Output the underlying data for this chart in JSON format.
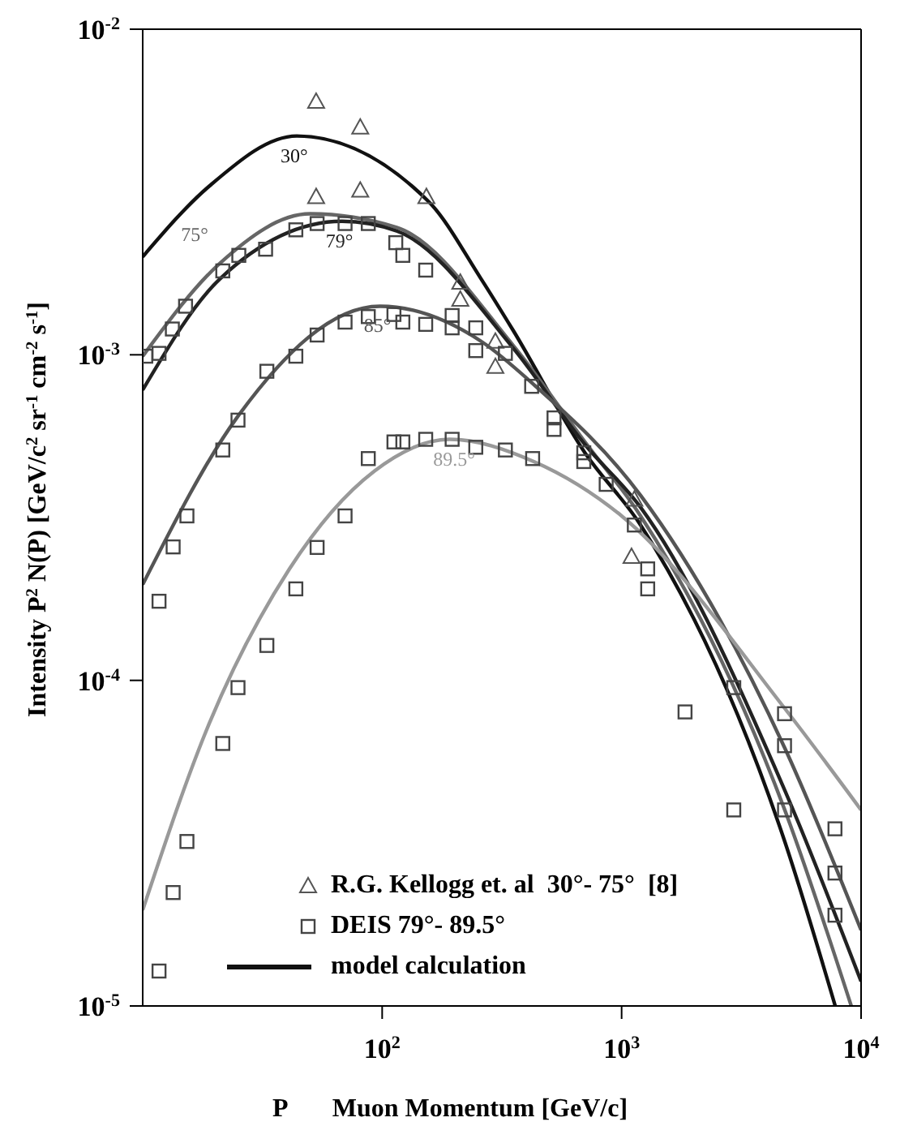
{
  "chart_data": {
    "type": "line",
    "xlabel": "P       Muon Momentum [GeV/c]",
    "ylabel": "Intensity    P$^{2}$ N(P) [GeV/c$^{2}$ sr$^{-1}$ cm$^{-2}$ s$^{-1}$]",
    "log": "xy",
    "xlim": [
      10,
      10000
    ],
    "xticks": [
      {
        "value": 100,
        "label": "10$^{2}$"
      },
      {
        "value": 1000,
        "label": "10$^{3}$"
      },
      {
        "value": 10000,
        "label": "10$^{4}$"
      }
    ],
    "ylim": [
      1e-05,
      0.01
    ],
    "yticks": [
      {
        "value": 1e-05,
        "label": "10$^{-5}$"
      },
      {
        "value": 0.0001,
        "label": "10$^{-4}$"
      },
      {
        "value": 0.001,
        "label": "10$^{-3}$"
      },
      {
        "value": 0.01,
        "label": "10$^{-2}$"
      }
    ],
    "grid": false,
    "legend": "bottom left",
    "annotations": [
      "model calculation"
    ],
    "series": [
      {
        "name": "30°",
        "color": "#111111",
        "marker": "none",
        "x": [
          10,
          19,
          44,
          156,
          259,
          352,
          703,
          1200,
          4800,
          7800
        ],
        "values": [
          0.002,
          0.0033,
          0.0047,
          0.00296,
          0.00171,
          0.00119,
          0.0005,
          0.0003,
          3.2e-05,
          1e-05
        ]
      },
      {
        "name": "75°",
        "color": "#666666",
        "marker": "none",
        "x": [
          10,
          21,
          50,
          115,
          352,
          703,
          1200,
          4800,
          9100
        ],
        "values": [
          0.00099,
          0.00191,
          0.00271,
          0.00246,
          0.00107,
          0.00054,
          0.00032,
          4e-05,
          1e-05
        ]
      },
      {
        "name": "79°",
        "color": "#222222",
        "marker": "none",
        "x": [
          10,
          21,
          68,
          115,
          352,
          703,
          1200,
          4800,
          10000
        ],
        "values": [
          0.00078,
          0.00171,
          0.00257,
          0.0024,
          0.00105,
          0.00053,
          0.00034,
          4.6e-05,
          1.19e-05
        ]
      },
      {
        "name": "85°",
        "color": "#555555",
        "marker": "none",
        "x": [
          10,
          24.7,
          98,
          259,
          430,
          1200,
          4800,
          10000
        ],
        "values": [
          0.000197,
          0.00064,
          0.00141,
          0.0011,
          0.00081,
          0.00037,
          6.2e-05,
          1.71e-05
        ]
      },
      {
        "name": "89.5°",
        "color": "#999999",
        "marker": "none",
        "x": [
          10,
          19,
          41,
          93,
          191,
          430,
          1000,
          4800,
          10000
        ],
        "values": [
          1.97e-05,
          7.4e-05,
          0.00022,
          0.00044,
          0.00055,
          0.00047,
          0.00032,
          8.2e-05,
          4e-05
        ]
      },
      {
        "name": "R.G. Kellogg et. al  30°- 75°  [8]",
        "type": "scatter",
        "color": "#555555",
        "marker": "triangle",
        "x": [
          53,
          81,
          53,
          81,
          153,
          212,
          212,
          297,
          297,
          1130,
          1100
        ],
        "values": [
          0.006,
          0.005,
          0.00306,
          0.0032,
          0.00306,
          0.00167,
          0.00148,
          0.0011,
          0.00092,
          0.00036,
          0.00024
        ]
      },
      {
        "name": "DEIS 79°- 89.5°",
        "type": "scatter",
        "color": "#444444",
        "marker": "square",
        "x": [
          10.3,
          11.7,
          13.3,
          15.1,
          21.6,
          25.2,
          32.6,
          43.6,
          53.5,
          70,
          87.5,
          114,
          122,
          152,
          15.3,
          21.6,
          25,
          33,
          43.6,
          53.5,
          70,
          87.5,
          112,
          122,
          152,
          196,
          196,
          246,
          246,
          327,
          11.7,
          13.4,
          70,
          87.5,
          112,
          122,
          152,
          196,
          246,
          327,
          425,
          53.5,
          43.6,
          33,
          25,
          21.6,
          15.3,
          13.4,
          11.7,
          421,
          522,
          522,
          695,
          695,
          862,
          1130,
          1285,
          1285,
          1840,
          2940,
          2940,
          4790,
          4790,
          4790,
          7780,
          7780,
          7780
        ],
        "values": [
          0.00099,
          0.00101,
          0.0012,
          0.00141,
          0.00181,
          0.00202,
          0.00211,
          0.00242,
          0.00253,
          0.00253,
          0.00253,
          0.00221,
          0.00202,
          0.00182,
          0.00032,
          0.00051,
          0.00063,
          0.00089,
          0.00099,
          0.00115,
          0.00126,
          0.00131,
          0.00133,
          0.00126,
          0.00124,
          0.00132,
          0.00121,
          0.00121,
          0.00103,
          0.00101,
          0.000175,
          0.000257,
          0.00032,
          0.00048,
          0.00054,
          0.00054,
          0.00055,
          0.00055,
          0.00052,
          0.00051,
          0.00048,
          0.000256,
          0.000191,
          0.000128,
          9.5e-05,
          6.4e-05,
          3.2e-05,
          2.23e-05,
          1.28e-05,
          0.0008,
          0.00064,
          0.00059,
          0.0005,
          0.00047,
          0.0004,
          0.0003,
          0.00022,
          0.000191,
          8e-05,
          9.5e-05,
          4e-05,
          7.9e-05,
          6.3e-05,
          4e-05,
          3.5e-05,
          2.56e-05,
          1.9e-05
        ]
      }
    ]
  }
}
